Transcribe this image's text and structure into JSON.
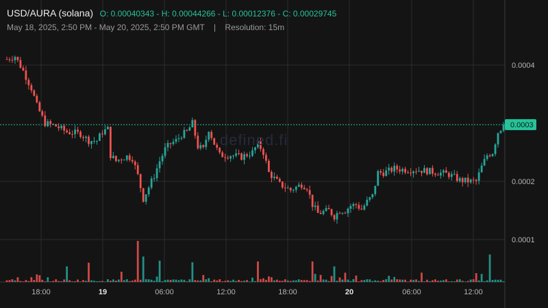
{
  "header": {
    "symbol": "USD/AURA (solana)",
    "ohlc": "O: 0.00040343 - H: 0.00044266 - L: 0.00012376 - C: 0.00029745",
    "range": "May 18, 2025, 2:50 PM - May 20, 2025, 2:50 PM GMT",
    "separator": "|",
    "resolution": "Resolution: 15m"
  },
  "watermark": "defined.fi",
  "colors": {
    "background": "#141414",
    "up": "#26a69a",
    "down": "#ef5350",
    "grid": "#2c2c2c",
    "price_tag": "#26c39a",
    "watermark": "#262a3d"
  },
  "chart_data": {
    "type": "candlestick",
    "title": "",
    "x_tick_labels": [
      "18:00",
      "19",
      "06:00",
      "12:00",
      "18:00",
      "20",
      "06:00",
      "12:00"
    ],
    "y_tick_labels": [
      "0.0004",
      "0.0002",
      "0.0001"
    ],
    "y_range": [
      0.000125,
      0.00044
    ],
    "current_price_label": "0.0003",
    "current_price": 0.00029745,
    "grid": true,
    "price_path": [
      [
        0,
        0.00041
      ],
      [
        3,
        0.000415
      ],
      [
        6,
        0.00039
      ],
      [
        9,
        0.00036
      ],
      [
        11,
        0.00033
      ],
      [
        14,
        0.0003
      ],
      [
        18,
        0.000295
      ],
      [
        22,
        0.000285
      ],
      [
        27,
        0.000282
      ],
      [
        30,
        0.00027
      ],
      [
        33,
        0.00027
      ],
      [
        35,
        0.000285
      ],
      [
        37,
        0.00029
      ],
      [
        38,
        0.000245
      ],
      [
        40,
        0.000235
      ],
      [
        42,
        0.00024
      ],
      [
        44,
        0.000243
      ],
      [
        46,
        0.00024
      ],
      [
        48,
        0.00021
      ],
      [
        50,
        0.00017
      ],
      [
        52,
        0.00019
      ],
      [
        54,
        0.00021
      ],
      [
        56,
        0.000235
      ],
      [
        58,
        0.000255
      ],
      [
        60,
        0.000265
      ],
      [
        62,
        0.00027
      ],
      [
        64,
        0.00028
      ],
      [
        66,
        0.000285
      ],
      [
        68,
        0.0003
      ],
      [
        70,
        0.00026
      ],
      [
        72,
        0.000255
      ],
      [
        74,
        0.00029
      ],
      [
        76,
        0.000265
      ],
      [
        78,
        0.000245
      ],
      [
        82,
        0.000245
      ],
      [
        86,
        0.000242
      ],
      [
        90,
        0.00025
      ],
      [
        92,
        0.000265
      ],
      [
        94,
        0.00025
      ],
      [
        96,
        0.000215
      ],
      [
        98,
        0.000205
      ],
      [
        100,
        0.000195
      ],
      [
        104,
        0.000185
      ],
      [
        108,
        0.000195
      ],
      [
        110,
        0.00019
      ],
      [
        112,
        0.00016
      ],
      [
        114,
        0.000145
      ],
      [
        118,
        0.00015
      ],
      [
        120,
        0.00014
      ],
      [
        122,
        0.00015
      ],
      [
        124,
        0.00015
      ],
      [
        126,
        0.000158
      ],
      [
        128,
        0.00016
      ],
      [
        130,
        0.000152
      ],
      [
        132,
        0.000165
      ],
      [
        134,
        0.000175
      ],
      [
        136,
        0.000215
      ],
      [
        138,
        0.000215
      ],
      [
        140,
        0.000218
      ],
      [
        142,
        0.000222
      ],
      [
        146,
        0.00022
      ],
      [
        150,
        0.00022
      ],
      [
        154,
        0.000218
      ],
      [
        158,
        0.000215
      ],
      [
        162,
        0.000212
      ],
      [
        166,
        0.000202
      ],
      [
        170,
        0.0002
      ],
      [
        172,
        0.0002
      ],
      [
        174,
        0.000225
      ],
      [
        176,
        0.000245
      ],
      [
        178,
        0.00025
      ],
      [
        180,
        0.000285
      ],
      [
        182,
        0.000297
      ]
    ],
    "volume_spikes": [
      {
        "x_index": 22,
        "direction": "up",
        "relative": 0.38
      },
      {
        "x_index": 30,
        "direction": "down",
        "relative": 0.47
      },
      {
        "x_index": 42,
        "direction": "down",
        "relative": 0.25
      },
      {
        "x_index": 48,
        "direction": "down",
        "relative": 1.0
      },
      {
        "x_index": 50,
        "direction": "up",
        "relative": 0.62
      },
      {
        "x_index": 56,
        "direction": "up",
        "relative": 0.52
      },
      {
        "x_index": 68,
        "direction": "up",
        "relative": 0.48
      },
      {
        "x_index": 92,
        "direction": "down",
        "relative": 0.5
      },
      {
        "x_index": 112,
        "direction": "down",
        "relative": 0.5
      },
      {
        "x_index": 120,
        "direction": "up",
        "relative": 0.38
      },
      {
        "x_index": 177,
        "direction": "up",
        "relative": 0.67
      }
    ]
  }
}
